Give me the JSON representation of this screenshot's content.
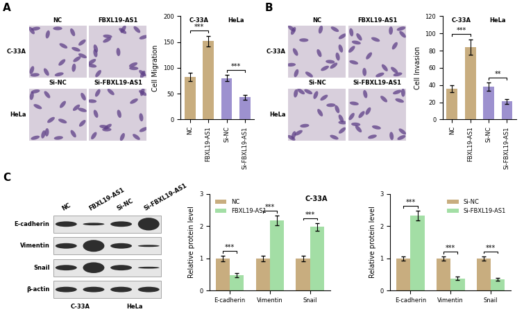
{
  "panel_labels": [
    "A",
    "B",
    "C"
  ],
  "micrographs": [
    {
      "columns": [
        "NC",
        "FBXL19-AS1"
      ],
      "bottom_columns": [
        "Si-NC",
        "Si-FBXL19-AS1"
      ],
      "rows": [
        "C-33A",
        "HeLa"
      ]
    },
    {
      "columns": [
        "NC",
        "FBXL19-AS1"
      ],
      "bottom_columns": [
        "Si-NC",
        "Si-FBXL19-AS1"
      ],
      "rows": [
        "C-33A",
        "HeLa"
      ]
    }
  ],
  "blot": {
    "lanes": [
      "NC",
      "FBXL19-AS1",
      "Si-NC",
      "Si-FBXL19-AS1"
    ],
    "proteins": [
      "E-cadherin",
      "Vimentin",
      "Snail",
      "β-actin"
    ],
    "cell_lines": [
      "C-33A",
      "HeLa"
    ]
  },
  "chart_data": [
    {
      "type": "bar",
      "y_label": "Cell Migration",
      "categories": [
        "NC",
        "FBXL19-AS1",
        "Si-NC",
        "Si-FBXL19-AS1"
      ],
      "values": [
        82,
        152,
        80,
        43
      ],
      "errors": [
        8,
        10,
        6,
        5
      ],
      "colors": [
        "#c8ad7f",
        "#c8ad7f",
        "#9d91cf",
        "#9d91cf"
      ],
      "ylim": [
        0,
        200
      ],
      "yticks": [
        0,
        50,
        100,
        150,
        200
      ],
      "significance": [
        {
          "text": "***",
          "span": [
            "NC",
            "FBXL19-AS1"
          ]
        },
        {
          "text": "***",
          "span": [
            "Si-NC",
            "Si-FBXL19-AS1"
          ]
        }
      ],
      "group_labels": [
        {
          "text": "C-33A",
          "span": [
            "NC",
            "FBXL19-AS1"
          ]
        },
        {
          "text": "HeLa",
          "span": [
            "Si-NC",
            "Si-FBXL19-AS1"
          ]
        }
      ]
    },
    {
      "type": "bar",
      "y_label": "Cell Invasion",
      "categories": [
        "NC",
        "FBXL19-AS1",
        "Si-NC",
        "Si-FBXL19-AS1"
      ],
      "values": [
        36,
        84,
        38,
        21
      ],
      "errors": [
        4,
        9,
        5,
        3
      ],
      "colors": [
        "#c8ad7f",
        "#c8ad7f",
        "#9d91cf",
        "#9d91cf"
      ],
      "ylim": [
        0,
        120
      ],
      "yticks": [
        0,
        20,
        40,
        60,
        80,
        100,
        120
      ],
      "significance": [
        {
          "text": "***",
          "span": [
            "NC",
            "FBXL19-AS1"
          ]
        },
        {
          "text": "**",
          "span": [
            "Si-NC",
            "Si-FBXL19-AS1"
          ]
        }
      ],
      "group_labels": [
        {
          "text": "C-33A",
          "span": [
            "NC",
            "FBXL19-AS1"
          ]
        },
        {
          "text": "HeLa",
          "span": [
            "Si-NC",
            "Si-FBXL19-AS1"
          ]
        }
      ]
    },
    {
      "type": "grouped_bar",
      "title": "C-33A",
      "y_label": "Relative protein level",
      "categories": [
        "E-cadherin",
        "Vimentin",
        "Snail"
      ],
      "series": [
        {
          "name": "NC",
          "color": "#c8ad7f",
          "values": [
            1.0,
            1.0,
            1.0
          ],
          "errors": [
            0.08,
            0.08,
            0.09
          ]
        },
        {
          "name": "FBXL19-AS1",
          "color": "#a3dea5",
          "values": [
            0.48,
            2.17,
            1.98
          ],
          "errors": [
            0.06,
            0.15,
            0.12
          ]
        }
      ],
      "ylim": [
        0,
        3
      ],
      "yticks": [
        0,
        1,
        2,
        3
      ],
      "legend": "upper left",
      "significance": [
        {
          "text": "***",
          "category": "E-cadherin"
        },
        {
          "text": "***",
          "category": "Vimentin"
        },
        {
          "text": "***",
          "category": "Snail"
        }
      ]
    },
    {
      "type": "grouped_bar",
      "y_label": "Relative protein level",
      "categories": [
        "E-cadherin",
        "Vimentin",
        "Snail"
      ],
      "series": [
        {
          "name": "Si-NC",
          "color": "#c8ad7f",
          "values": [
            1.0,
            1.0,
            1.0
          ],
          "errors": [
            0.07,
            0.06,
            0.07
          ]
        },
        {
          "name": "Si-FBXL19-AS1",
          "color": "#a3dea5",
          "values": [
            2.33,
            0.38,
            0.35
          ],
          "errors": [
            0.15,
            0.05,
            0.05
          ]
        }
      ],
      "ylim": [
        0,
        3
      ],
      "yticks": [
        0,
        1,
        2,
        3
      ],
      "legend": "upper right",
      "significance": [
        {
          "text": "***",
          "category": "E-cadherin"
        },
        {
          "text": "***",
          "category": "Vimentin"
        },
        {
          "text": "***",
          "category": "Snail"
        }
      ]
    }
  ]
}
